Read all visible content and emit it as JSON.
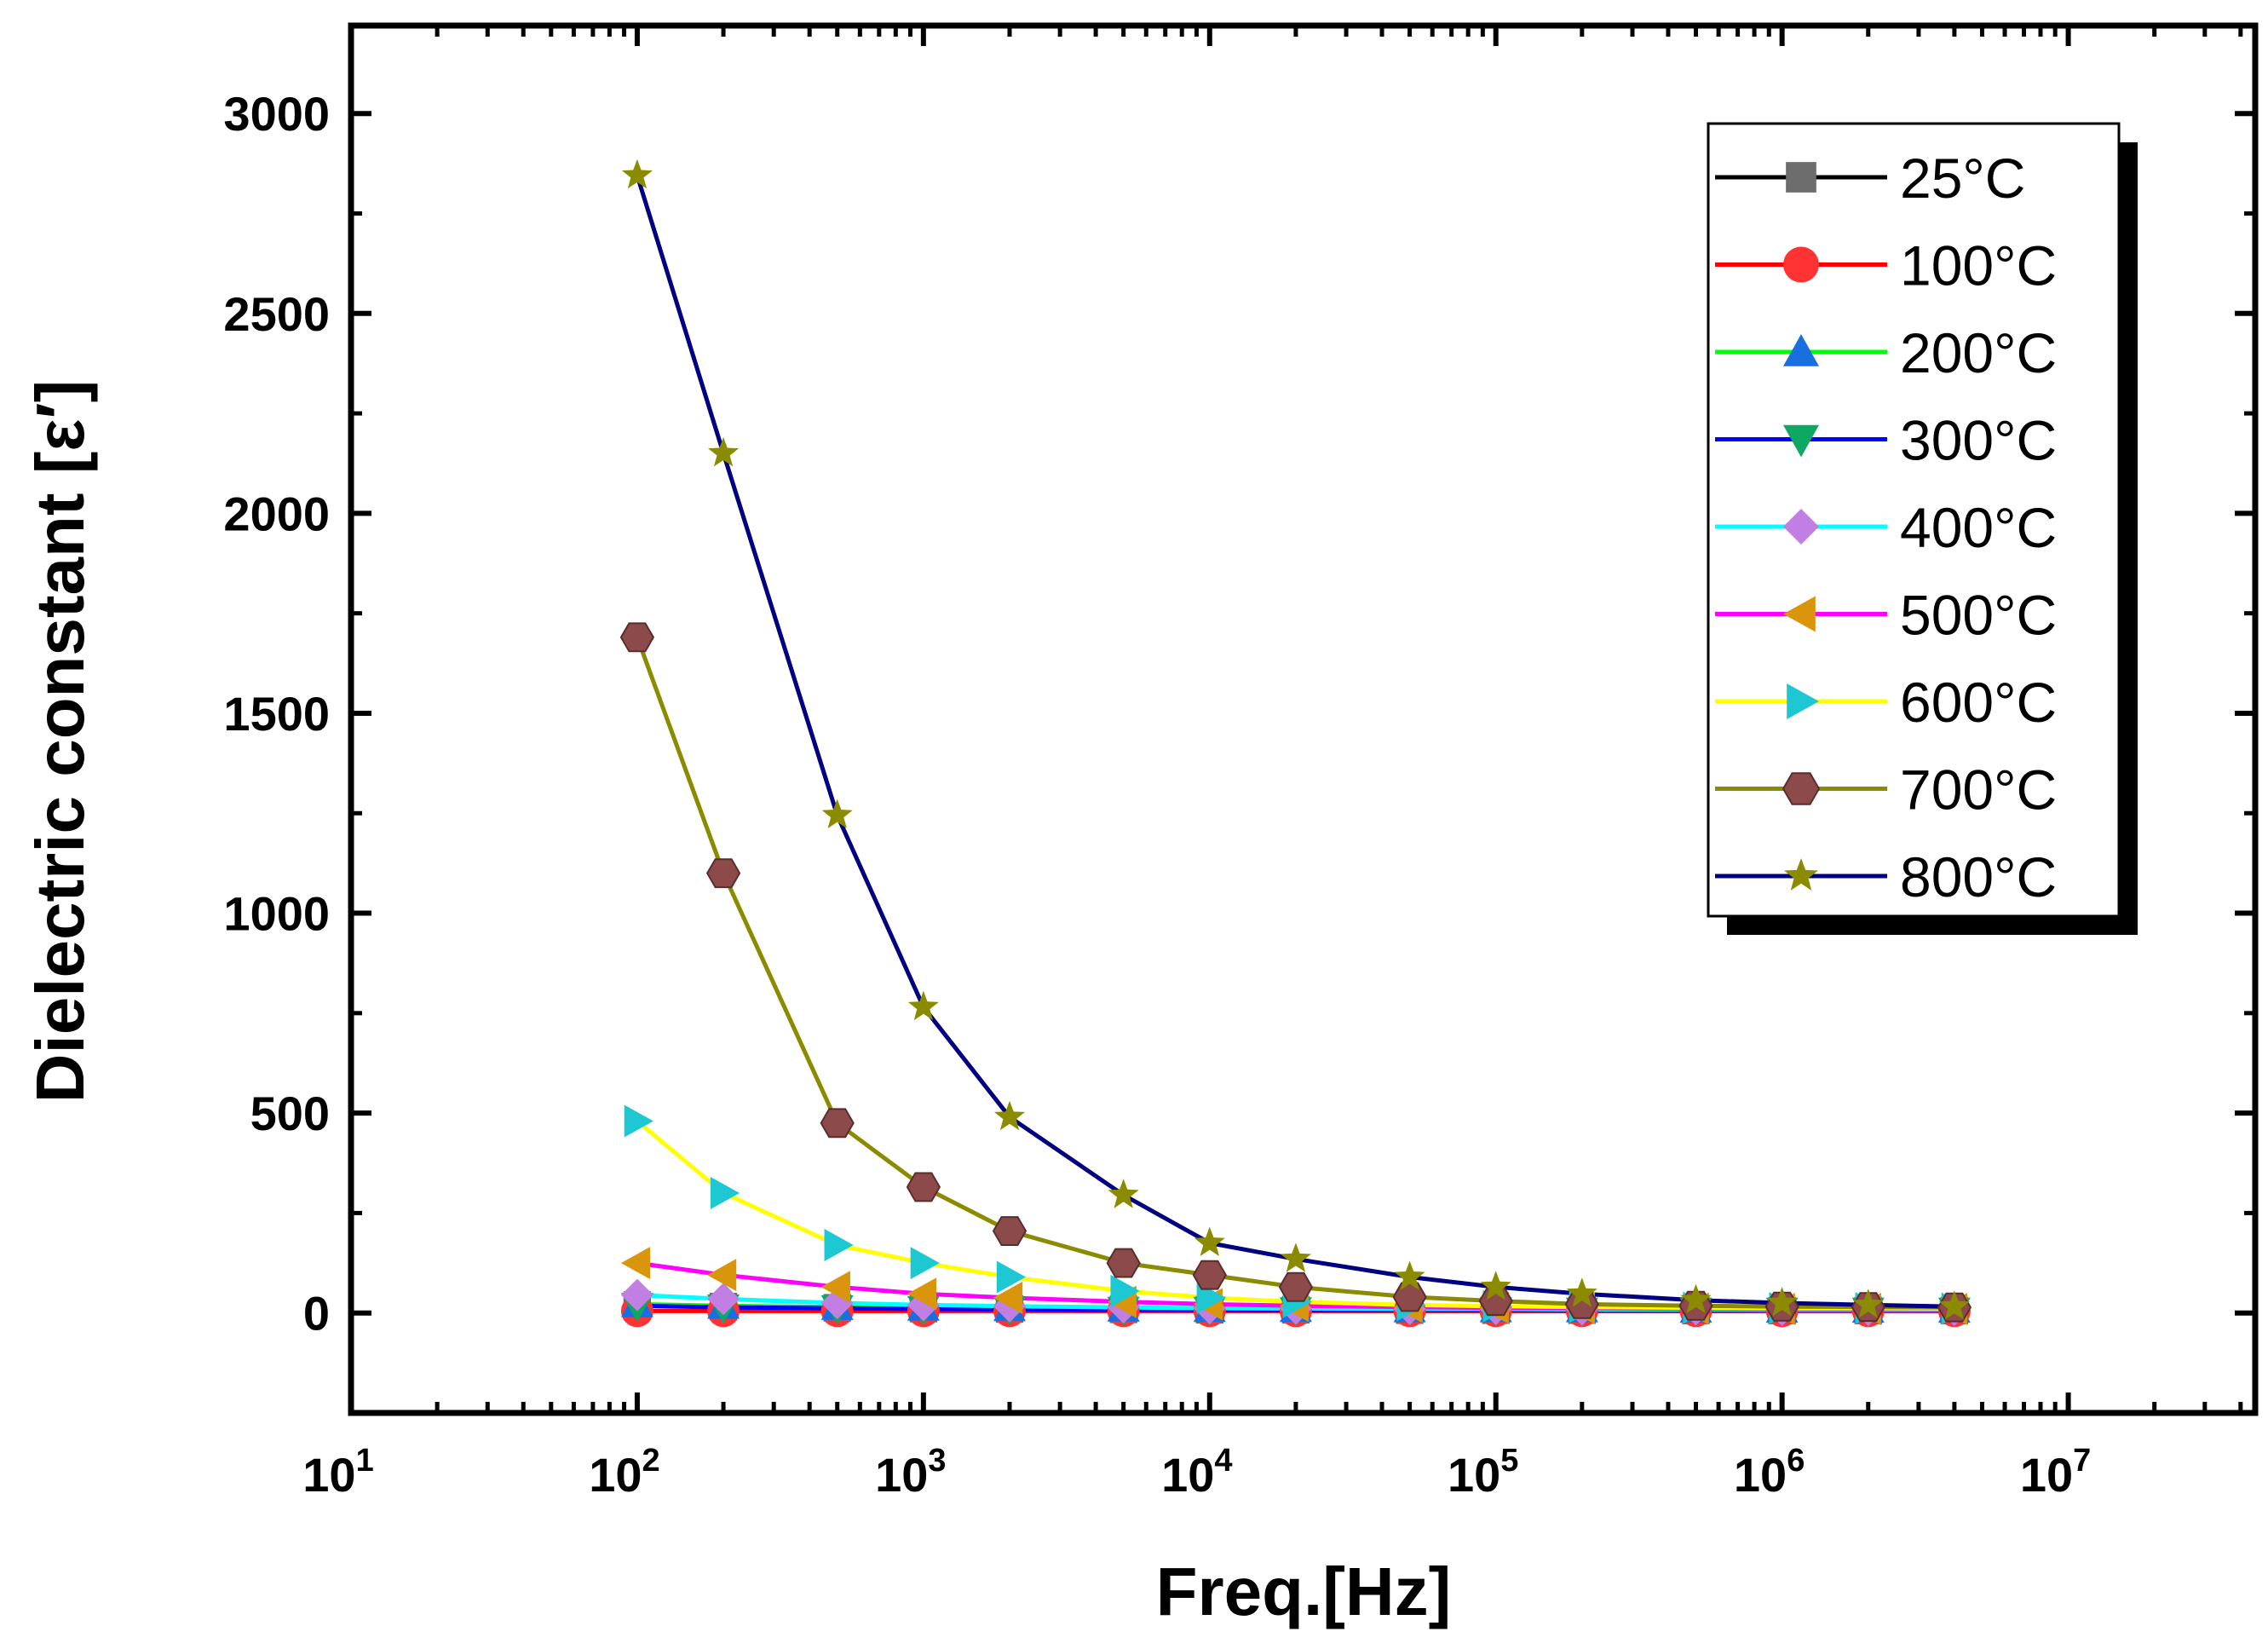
{
  "chart_data": {
    "type": "line",
    "title": "",
    "xlabel": "Freq.[Hz]",
    "ylabel": "Dielectric constant [ε′]",
    "xscale": "log",
    "xlim": [
      10,
      45000000
    ],
    "ylim": [
      -250,
      3220
    ],
    "x_ticks": [
      {
        "value": 10,
        "base": "10",
        "exp": "1"
      },
      {
        "value": 100,
        "base": "10",
        "exp": "2"
      },
      {
        "value": 1000,
        "base": "10",
        "exp": "3"
      },
      {
        "value": 10000,
        "base": "10",
        "exp": "4"
      },
      {
        "value": 100000,
        "base": "10",
        "exp": "5"
      },
      {
        "value": 1000000,
        "base": "10",
        "exp": "6"
      },
      {
        "value": 10000000,
        "base": "10",
        "exp": "7"
      }
    ],
    "y_ticks": [
      0,
      500,
      1000,
      1500,
      2000,
      2500,
      3000
    ],
    "legend_position": "top-right",
    "x": [
      100,
      200,
      500,
      1000,
      2000,
      5000,
      10000,
      20000,
      50000,
      100000,
      200000,
      500000,
      1000000,
      2000000,
      4000000
    ],
    "series": [
      {
        "name": "25°C",
        "line_color": "#000000",
        "marker_color": "#6d6d6d",
        "marker": "square",
        "values": [
          20,
          16,
          13,
          11,
          10,
          9,
          8,
          8,
          7,
          7,
          7,
          6,
          6,
          6,
          6
        ]
      },
      {
        "name": "100°C",
        "line_color": "#ff0000",
        "marker_color": "#ff3333",
        "marker": "circle",
        "values": [
          5,
          5,
          5,
          5,
          5,
          5,
          5,
          5,
          5,
          5,
          5,
          5,
          5,
          5,
          5
        ]
      },
      {
        "name": "200°C",
        "line_color": "#00ff00",
        "marker_color": "#1a6fe0",
        "marker": "triangle-up",
        "values": [
          22,
          18,
          15,
          13,
          12,
          11,
          10,
          10,
          9,
          9,
          9,
          8,
          8,
          8,
          8
        ]
      },
      {
        "name": "300°C",
        "line_color": "#0000ff",
        "marker_color": "#0fa863",
        "marker": "triangle-down",
        "values": [
          18,
          14,
          12,
          10,
          9,
          8,
          8,
          7,
          7,
          7,
          6,
          6,
          6,
          6,
          6
        ]
      },
      {
        "name": "400°C",
        "line_color": "#00ffff",
        "marker_color": "#c17fe3",
        "marker": "diamond",
        "values": [
          45,
          35,
          25,
          20,
          17,
          14,
          12,
          11,
          10,
          10,
          9,
          9,
          8,
          8,
          8
        ]
      },
      {
        "name": "500°C",
        "line_color": "#ff00ff",
        "marker_color": "#d9950c",
        "marker": "triangle-left",
        "values": [
          125,
          95,
          65,
          48,
          38,
          28,
          22,
          18,
          15,
          13,
          12,
          11,
          10,
          10,
          10
        ]
      },
      {
        "name": "600°C",
        "line_color": "#ffff00",
        "marker_color": "#1dc8d2",
        "marker": "triangle-right",
        "values": [
          480,
          300,
          170,
          125,
          90,
          55,
          38,
          28,
          20,
          17,
          15,
          13,
          12,
          12,
          11
        ]
      },
      {
        "name": "700°C",
        "line_color": "#8b8b00",
        "marker_color": "#8c4a4a",
        "marker": "hexagon",
        "values": [
          1690,
          1100,
          475,
          315,
          205,
          125,
          95,
          65,
          40,
          30,
          22,
          18,
          16,
          15,
          14
        ]
      },
      {
        "name": "800°C",
        "line_color": "#000080",
        "marker_color": "#8b8b00",
        "marker": "star",
        "values": [
          2845,
          2150,
          1245,
          765,
          490,
          295,
          175,
          135,
          90,
          65,
          48,
          32,
          25,
          20,
          16
        ]
      }
    ]
  }
}
